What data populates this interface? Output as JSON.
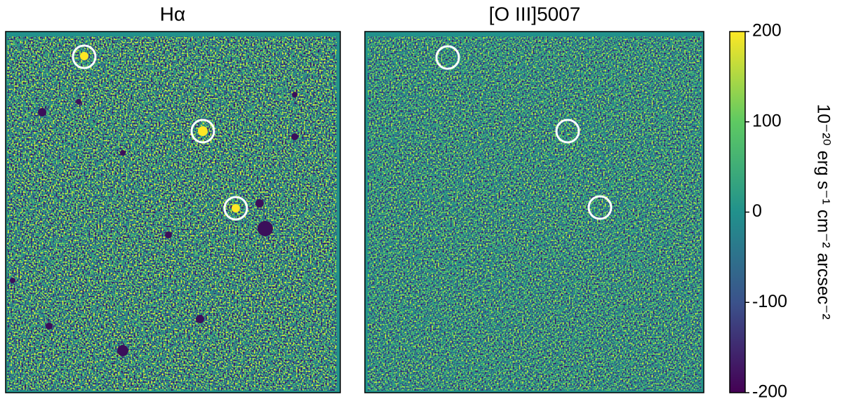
{
  "chart_data": {
    "type": "image",
    "colormap": "viridis",
    "panels": [
      {
        "title": "Hα"
      },
      {
        "title": "[O III]5007"
      }
    ],
    "colorbar": {
      "label": "10⁻²⁰ erg s⁻¹ cm⁻² arcsec⁻²",
      "clim": [
        -200,
        200
      ],
      "ticks": [
        -200,
        -100,
        0,
        100,
        200
      ]
    }
  }
}
